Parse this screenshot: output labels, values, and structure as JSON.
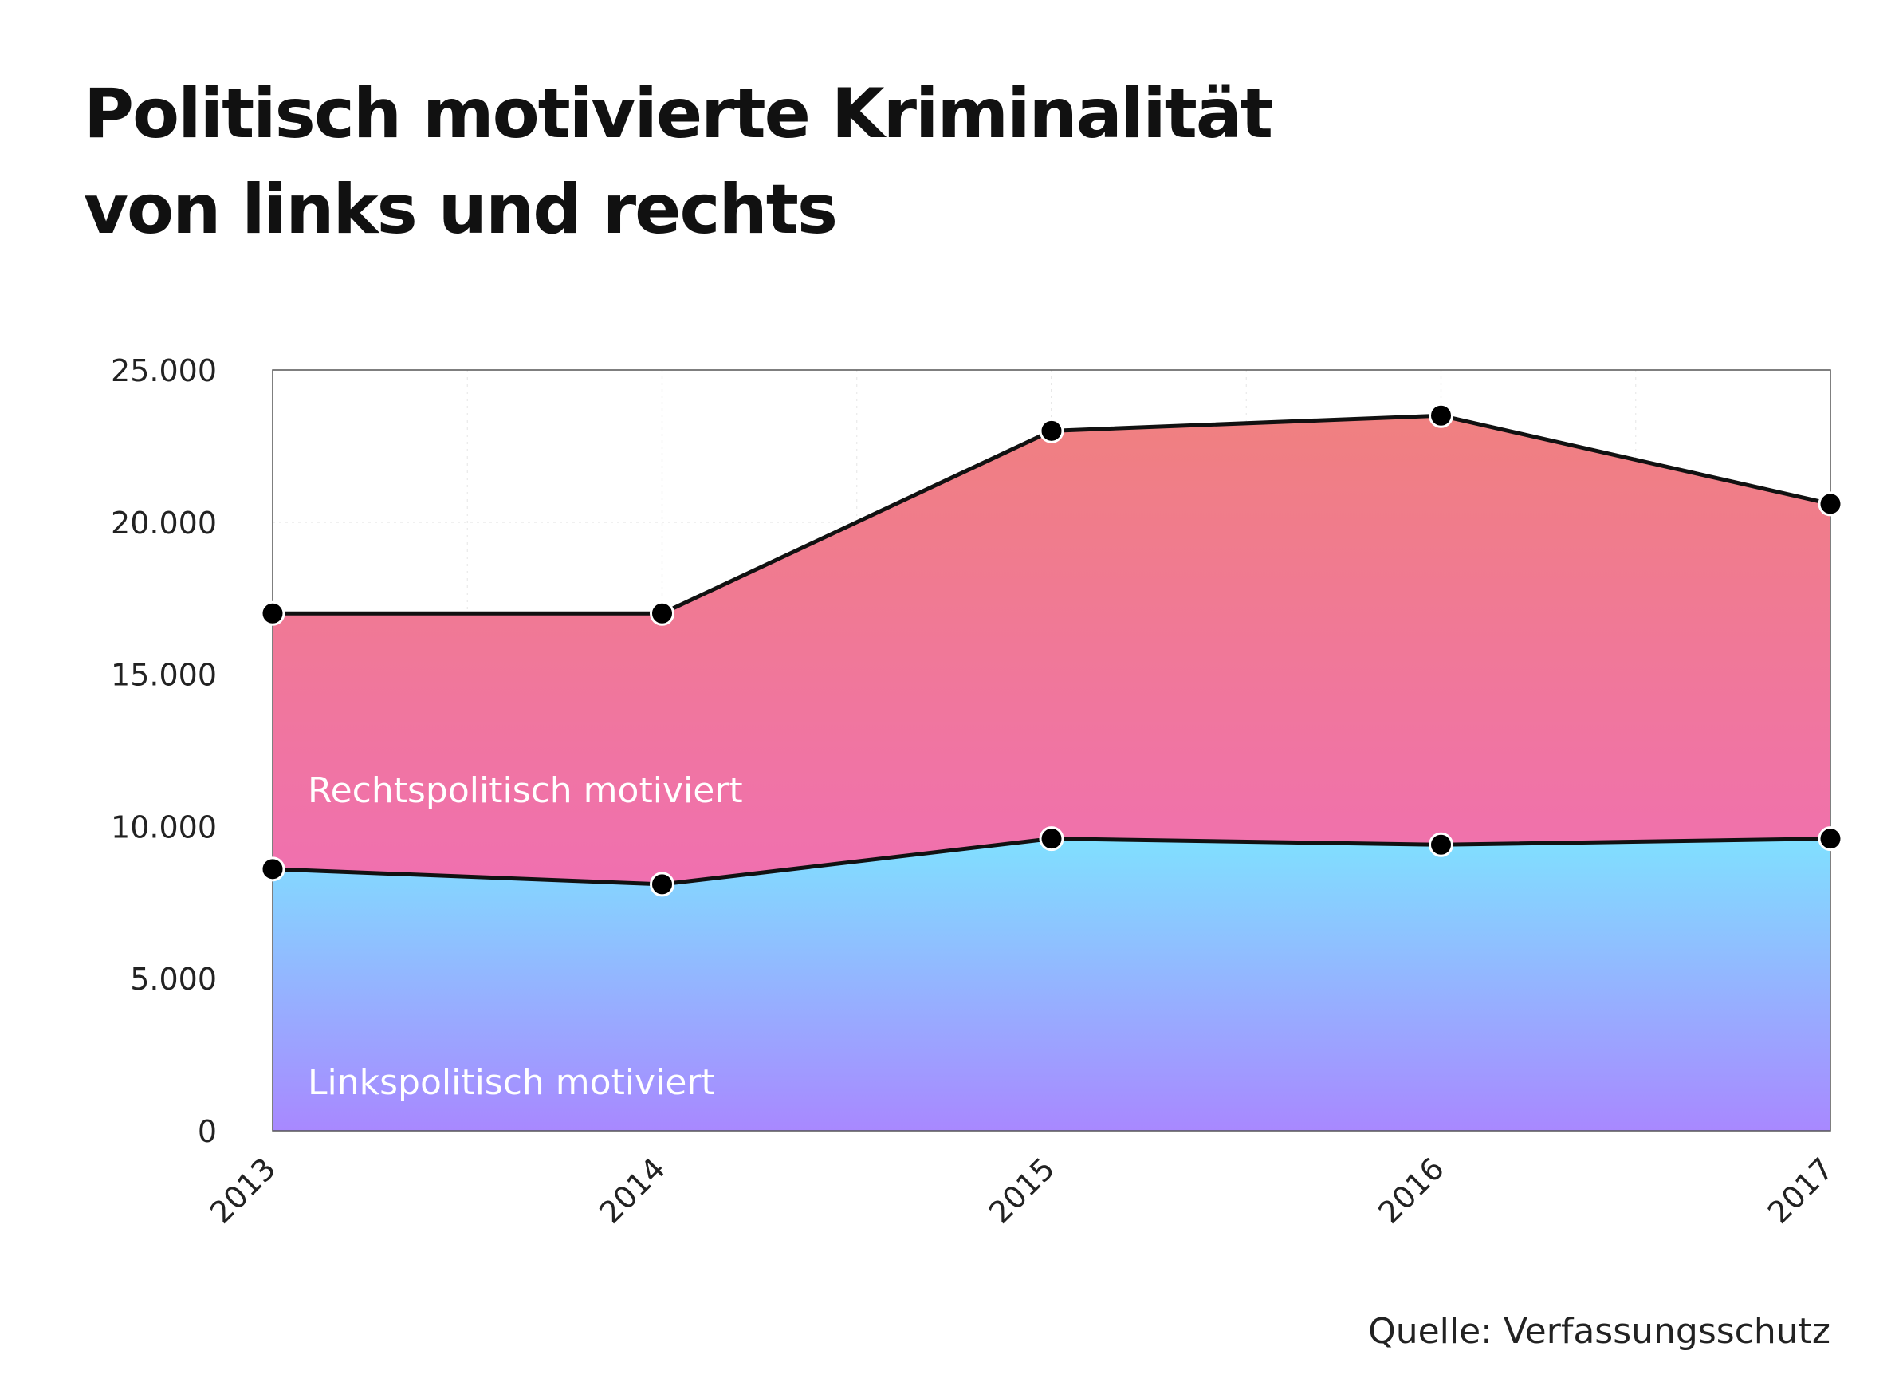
{
  "title_line1": "Politisch motivierte Kriminalität",
  "title_line2": "von links und rechts",
  "source": "Quelle: Verfassungsschutz",
  "colors": {
    "right_top": "#f08080",
    "right_bottom": "#f070b0",
    "left_top": "#80e0ff",
    "left_bottom": "#a888ff",
    "line": "#111111",
    "marker": "#000000"
  },
  "chart_data": {
    "type": "area",
    "stacked": true,
    "x": [
      "2013",
      "2014",
      "2015",
      "2016",
      "2017"
    ],
    "ylim": [
      0,
      25000
    ],
    "yticks": [
      0,
      5000,
      10000,
      15000,
      20000,
      25000
    ],
    "ytick_labels": [
      "0",
      "5.000",
      "10.000",
      "15.000",
      "20.000",
      "25.000"
    ],
    "grid": true,
    "series": [
      {
        "name": "Linkspolitisch motiviert",
        "values": [
          8600,
          8100,
          9600,
          9400,
          9600
        ],
        "label": "Linkspolitisch motiviert"
      },
      {
        "name": "Rechtspolitisch motiviert",
        "values": [
          8400,
          8900,
          13400,
          14100,
          11000
        ],
        "cumulative": [
          17000,
          17000,
          23000,
          23500,
          20600
        ],
        "label": "Rechtspolitisch motiviert"
      }
    ]
  }
}
